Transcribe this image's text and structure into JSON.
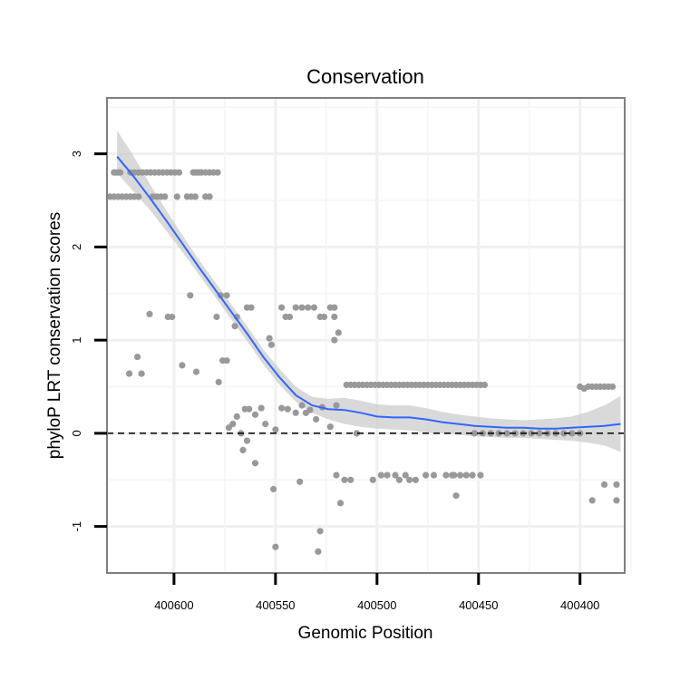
{
  "chart_data": {
    "type": "scatter",
    "title": "Conservation",
    "xlabel": "Genomic Position",
    "ylabel": "phyloP LRT conservation scores",
    "x_reversed": true,
    "xlim": [
      400633,
      400378
    ],
    "ylim": [
      -1.5,
      3.6
    ],
    "x_ticks": [
      {
        "value": 400600,
        "label": "400600"
      },
      {
        "value": 400550,
        "label": "400550"
      },
      {
        "value": 400500,
        "label": "400500"
      },
      {
        "value": 400450,
        "label": "400450"
      },
      {
        "value": 400400,
        "label": "400400"
      }
    ],
    "y_ticks": [
      {
        "value": -1,
        "label": "-1"
      },
      {
        "value": 0,
        "label": "0"
      },
      {
        "value": 1,
        "label": "1"
      },
      {
        "value": 2,
        "label": "2"
      },
      {
        "value": 3,
        "label": "3"
      }
    ],
    "reference_line": {
      "y": 0,
      "style": "dashed",
      "color": "#000000"
    },
    "point_color": "#999999",
    "smooth_color": "#3366FF",
    "ribbon_color": "#cccccc",
    "points": [
      [
        400629.5,
        2.8
      ],
      [
        400628.5,
        2.8
      ],
      [
        400627.5,
        2.8
      ],
      [
        400626.5,
        2.8
      ],
      [
        400621.5,
        2.8
      ],
      [
        400619.5,
        2.8
      ],
      [
        400617.5,
        2.8
      ],
      [
        400615.5,
        2.8
      ],
      [
        400613.5,
        2.8
      ],
      [
        400611.5,
        2.8
      ],
      [
        400609.5,
        2.8
      ],
      [
        400607.5,
        2.8
      ],
      [
        400605.5,
        2.8
      ],
      [
        400603.5,
        2.8
      ],
      [
        400601.5,
        2.8
      ],
      [
        400599.5,
        2.8
      ],
      [
        400597.5,
        2.8
      ],
      [
        400590.5,
        2.8
      ],
      [
        400589.5,
        2.8
      ],
      [
        400588.5,
        2.8
      ],
      [
        400587.5,
        2.8
      ],
      [
        400586.5,
        2.8
      ],
      [
        400584.5,
        2.8
      ],
      [
        400582.5,
        2.8
      ],
      [
        400580.5,
        2.8
      ],
      [
        400578.5,
        2.8
      ],
      [
        400631.5,
        2.54
      ],
      [
        400629.5,
        2.54
      ],
      [
        400627.5,
        2.54
      ],
      [
        400625.5,
        2.54
      ],
      [
        400623.5,
        2.54
      ],
      [
        400621.5,
        2.54
      ],
      [
        400619.5,
        2.54
      ],
      [
        400617.5,
        2.54
      ],
      [
        400610.5,
        2.54
      ],
      [
        400608.5,
        2.54
      ],
      [
        400606.5,
        2.54
      ],
      [
        400604.5,
        2.54
      ],
      [
        400598.5,
        2.54
      ],
      [
        400593.5,
        2.54
      ],
      [
        400591.5,
        2.54
      ],
      [
        400589.5,
        2.54
      ],
      [
        400584.5,
        2.54
      ],
      [
        400582.5,
        2.54
      ],
      [
        400592,
        1.48
      ],
      [
        400577,
        1.48
      ],
      [
        400574,
        1.48
      ],
      [
        400612,
        1.28
      ],
      [
        400603,
        1.25
      ],
      [
        400601,
        1.25
      ],
      [
        400579,
        1.25
      ],
      [
        400569,
        1.25
      ],
      [
        400570,
        1.15
      ],
      [
        400618,
        0.82
      ],
      [
        400622,
        0.64
      ],
      [
        400616,
        0.64
      ],
      [
        400596,
        0.73
      ],
      [
        400589,
        0.66
      ],
      [
        400578,
        0.55
      ],
      [
        400576,
        0.78
      ],
      [
        400574,
        0.78
      ],
      [
        400564,
        1.35
      ],
      [
        400562,
        1.35
      ],
      [
        400553,
        1.02
      ],
      [
        400552,
        0.95
      ],
      [
        400547,
        1.35
      ],
      [
        400545,
        1.25
      ],
      [
        400543,
        1.25
      ],
      [
        400540,
        1.35
      ],
      [
        400537,
        1.35
      ],
      [
        400534,
        1.35
      ],
      [
        400531,
        1.35
      ],
      [
        400528,
        1.25
      ],
      [
        400526,
        1.25
      ],
      [
        400523,
        1.35
      ],
      [
        400521,
        1.35
      ],
      [
        400521,
        1.25
      ],
      [
        400519,
        1.08
      ],
      [
        400521,
        1.0
      ],
      [
        400573,
        0.06
      ],
      [
        400571,
        0.1
      ],
      [
        400569,
        0.18
      ],
      [
        400567,
        0.0
      ],
      [
        400565,
        0.26
      ],
      [
        400563,
        0.26
      ],
      [
        400566,
        -0.18
      ],
      [
        400564,
        -0.08
      ],
      [
        400560,
        0.2
      ],
      [
        400557,
        0.27
      ],
      [
        400555,
        0.1
      ],
      [
        400550,
        0.04
      ],
      [
        400547,
        0.27
      ],
      [
        400544,
        0.26
      ],
      [
        400540,
        0.22
      ],
      [
        400537,
        0.3
      ],
      [
        400535,
        0.22
      ],
      [
        400533,
        0.25
      ],
      [
        400530,
        0.15
      ],
      [
        400527,
        0.28
      ],
      [
        400523,
        0.07
      ],
      [
        400520,
        0.3
      ],
      [
        400560,
        -0.32
      ],
      [
        400551,
        -0.6
      ],
      [
        400550,
        -1.22
      ],
      [
        400538,
        -0.52
      ],
      [
        400529,
        -1.27
      ],
      [
        400528,
        -1.05
      ],
      [
        400520,
        -0.45
      ],
      [
        400518,
        -0.75
      ],
      [
        400516,
        -0.5
      ],
      [
        400513,
        -0.5
      ],
      [
        400502,
        -0.5
      ],
      [
        400498,
        -0.45
      ],
      [
        400495,
        -0.45
      ],
      [
        400491,
        -0.45
      ],
      [
        400489,
        -0.5
      ],
      [
        400486,
        -0.45
      ],
      [
        400484,
        -0.5
      ],
      [
        400481,
        -0.5
      ],
      [
        400476,
        -0.45
      ],
      [
        400472,
        -0.45
      ],
      [
        400466,
        -0.45
      ],
      [
        400463,
        -0.45
      ],
      [
        400462,
        -0.45
      ],
      [
        400461,
        -0.67
      ],
      [
        400459,
        -0.45
      ],
      [
        400456,
        -0.45
      ],
      [
        400453,
        -0.45
      ],
      [
        400449,
        -0.45
      ],
      [
        400515,
        0.52
      ],
      [
        400513,
        0.52
      ],
      [
        400511,
        0.52
      ],
      [
        400509,
        0.52
      ],
      [
        400507,
        0.52
      ],
      [
        400505,
        0.52
      ],
      [
        400503,
        0.52
      ],
      [
        400501,
        0.52
      ],
      [
        400499,
        0.52
      ],
      [
        400497,
        0.52
      ],
      [
        400495,
        0.52
      ],
      [
        400493,
        0.52
      ],
      [
        400491,
        0.52
      ],
      [
        400489,
        0.52
      ],
      [
        400487,
        0.52
      ],
      [
        400485,
        0.52
      ],
      [
        400483,
        0.52
      ],
      [
        400481,
        0.52
      ],
      [
        400479,
        0.52
      ],
      [
        400477,
        0.52
      ],
      [
        400475,
        0.52
      ],
      [
        400473,
        0.52
      ],
      [
        400471,
        0.52
      ],
      [
        400469,
        0.52
      ],
      [
        400467,
        0.52
      ],
      [
        400465,
        0.52
      ],
      [
        400463,
        0.52
      ],
      [
        400461,
        0.52
      ],
      [
        400459,
        0.52
      ],
      [
        400457,
        0.52
      ],
      [
        400455,
        0.52
      ],
      [
        400453,
        0.52
      ],
      [
        400451,
        0.52
      ],
      [
        400449,
        0.52
      ],
      [
        400447,
        0.52
      ],
      [
        400510,
        0.0
      ],
      [
        400452,
        0.0
      ],
      [
        400448,
        0.0
      ],
      [
        400444,
        0.0
      ],
      [
        400440,
        0.0
      ],
      [
        400436,
        0.0
      ],
      [
        400432,
        0.0
      ],
      [
        400428,
        0.0
      ],
      [
        400424,
        0.0
      ],
      [
        400420,
        0.0
      ],
      [
        400416,
        0.0
      ],
      [
        400412,
        0.0
      ],
      [
        400408,
        0.0
      ],
      [
        400404,
        0.0
      ],
      [
        400400,
        0.0
      ],
      [
        400400,
        0.5
      ],
      [
        400398,
        0.48
      ],
      [
        400396,
        0.5
      ],
      [
        400394,
        0.5
      ],
      [
        400392,
        0.5
      ],
      [
        400390,
        0.5
      ],
      [
        400388,
        0.5
      ],
      [
        400386,
        0.5
      ],
      [
        400384,
        0.5
      ],
      [
        400388,
        -0.55
      ],
      [
        400382,
        -0.55
      ],
      [
        400394,
        -0.72
      ],
      [
        400382,
        -0.72
      ]
    ],
    "smooth": {
      "x": [
        400628,
        400620,
        400612,
        400604,
        400596,
        400588,
        400580,
        400572,
        400564,
        400556,
        400548,
        400540,
        400532,
        400524,
        400516,
        400508,
        400500,
        400492,
        400484,
        400476,
        400468,
        400460,
        400452,
        400444,
        400436,
        400428,
        400420,
        400412,
        400404,
        400396,
        400388,
        400380
      ],
      "y": [
        2.97,
        2.76,
        2.53,
        2.29,
        2.04,
        1.79,
        1.55,
        1.31,
        1.07,
        0.82,
        0.6,
        0.41,
        0.3,
        0.26,
        0.25,
        0.22,
        0.18,
        0.17,
        0.17,
        0.15,
        0.12,
        0.1,
        0.08,
        0.07,
        0.06,
        0.06,
        0.05,
        0.05,
        0.06,
        0.07,
        0.08,
        0.1
      ],
      "lower": [
        2.79,
        2.6,
        2.4,
        2.18,
        1.95,
        1.71,
        1.47,
        1.23,
        0.99,
        0.74,
        0.52,
        0.34,
        0.22,
        0.15,
        0.1,
        0.07,
        0.05,
        0.04,
        0.03,
        0.01,
        0.0,
        -0.02,
        -0.03,
        -0.04,
        -0.05,
        -0.05,
        -0.06,
        -0.07,
        -0.08,
        -0.1,
        -0.13,
        -0.2
      ],
      "upper": [
        3.25,
        2.98,
        2.68,
        2.4,
        2.13,
        1.87,
        1.63,
        1.39,
        1.15,
        0.9,
        0.69,
        0.5,
        0.39,
        0.37,
        0.38,
        0.35,
        0.31,
        0.3,
        0.3,
        0.27,
        0.23,
        0.2,
        0.18,
        0.16,
        0.15,
        0.14,
        0.15,
        0.16,
        0.18,
        0.23,
        0.3,
        0.4
      ]
    }
  }
}
